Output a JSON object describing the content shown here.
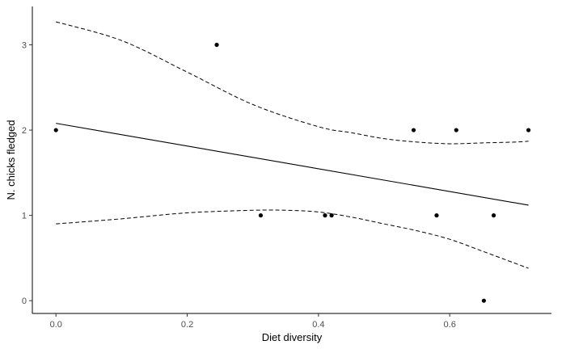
{
  "chart_data": {
    "type": "scatter",
    "title": "",
    "xlabel": "Diet diversity",
    "ylabel": "N. chicks fledged",
    "xlim": [
      -0.036,
      0.755
    ],
    "ylim": [
      -0.15,
      3.45
    ],
    "x_ticks": [
      0.0,
      0.2,
      0.4,
      0.6
    ],
    "x_tick_labels": [
      "0.0",
      "0.2",
      "0.4",
      "0.6"
    ],
    "y_ticks": [
      0,
      1,
      2,
      3
    ],
    "y_tick_labels": [
      "0",
      "1",
      "2",
      "3"
    ],
    "grid": false,
    "points": [
      {
        "x": 0.0,
        "y": 2
      },
      {
        "x": 0.245,
        "y": 3
      },
      {
        "x": 0.312,
        "y": 1
      },
      {
        "x": 0.41,
        "y": 1
      },
      {
        "x": 0.42,
        "y": 1
      },
      {
        "x": 0.545,
        "y": 2
      },
      {
        "x": 0.58,
        "y": 1
      },
      {
        "x": 0.61,
        "y": 2
      },
      {
        "x": 0.652,
        "y": 0
      },
      {
        "x": 0.667,
        "y": 1
      },
      {
        "x": 0.72,
        "y": 2
      }
    ],
    "fit_line": {
      "x": [
        0.0,
        0.72
      ],
      "y": [
        2.08,
        1.12
      ]
    },
    "ci_upper": {
      "x": [
        0.0,
        0.1,
        0.2,
        0.3,
        0.4,
        0.45,
        0.5,
        0.55,
        0.6,
        0.65,
        0.7,
        0.72
      ],
      "y": [
        3.27,
        3.05,
        2.68,
        2.3,
        2.04,
        1.97,
        1.9,
        1.86,
        1.84,
        1.85,
        1.86,
        1.87
      ]
    },
    "ci_lower": {
      "x": [
        0.0,
        0.1,
        0.2,
        0.3,
        0.35,
        0.4,
        0.45,
        0.5,
        0.55,
        0.6,
        0.65,
        0.72
      ],
      "y": [
        0.9,
        0.96,
        1.03,
        1.06,
        1.06,
        1.04,
        0.98,
        0.9,
        0.82,
        0.72,
        0.58,
        0.38
      ]
    }
  }
}
